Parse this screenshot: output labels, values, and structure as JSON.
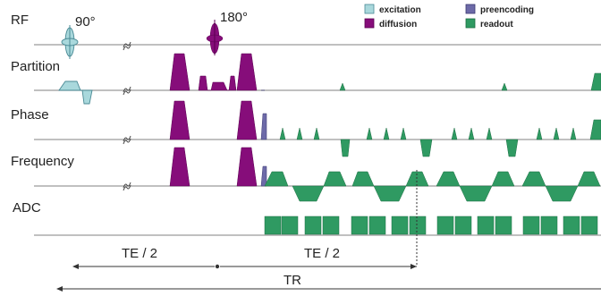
{
  "rows": {
    "rf": "RF",
    "partition": "Partition",
    "phase": "Phase",
    "frequency": "Frequency",
    "adc": "ADC"
  },
  "pulses": {
    "excitation_angle": "90°",
    "refocusing_angle": "180°"
  },
  "legend": [
    {
      "label": "excitation",
      "color": "#a9d8dc"
    },
    {
      "label": "diffusion",
      "color": "#860d7a"
    },
    {
      "label": "preencoding",
      "color": "#6d6aa8"
    },
    {
      "label": "readout",
      "color": "#2f9a62"
    }
  ],
  "timing": {
    "te_half_1": "TE / 2",
    "te_half_2": "TE / 2",
    "tr": "TR"
  }
}
